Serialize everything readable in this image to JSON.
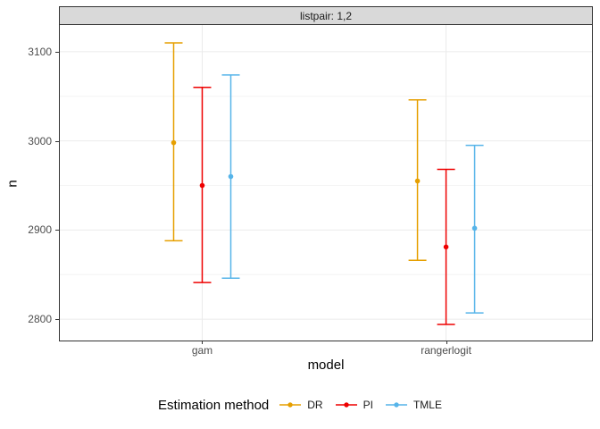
{
  "facet": {
    "label": "listpair: 1,2"
  },
  "axes": {
    "y": {
      "title": "n",
      "ticks": [
        3100,
        3000,
        2900,
        2800
      ],
      "minor_ticks": [
        3050,
        2950,
        2850
      ]
    },
    "x": {
      "title": "model",
      "categories": [
        "gam",
        "rangerlogit"
      ]
    }
  },
  "legend": {
    "title": "Estimation method",
    "items": [
      {
        "label": "DR",
        "color": "#E69F00"
      },
      {
        "label": "PI",
        "color": "#EE0000"
      },
      {
        "label": "TMLE",
        "color": "#56B4E9"
      }
    ]
  },
  "chart_data": {
    "type": "scatter",
    "subtype": "pointrange-errorbar",
    "title": "listpair: 1,2",
    "xlabel": "model",
    "ylabel": "n",
    "categories": [
      "gam",
      "rangerlogit"
    ],
    "ylim": [
      2776,
      3130
    ],
    "grid": "on",
    "legend_position": "bottom",
    "series": [
      {
        "name": "DR",
        "color": "#E69F00",
        "points": [
          {
            "category": "gam",
            "mid": 2998,
            "lower": 2888,
            "upper": 3110
          },
          {
            "category": "rangerlogit",
            "mid": 2955,
            "lower": 2866,
            "upper": 3046
          }
        ]
      },
      {
        "name": "PI",
        "color": "#EE0000",
        "points": [
          {
            "category": "gam",
            "mid": 2950,
            "lower": 2841,
            "upper": 3060
          },
          {
            "category": "rangerlogit",
            "mid": 2881,
            "lower": 2794,
            "upper": 2968
          }
        ]
      },
      {
        "name": "TMLE",
        "color": "#56B4E9",
        "points": [
          {
            "category": "gam",
            "mid": 2960,
            "lower": 2846,
            "upper": 3074
          },
          {
            "category": "rangerlogit",
            "mid": 2902,
            "lower": 2807,
            "upper": 2995
          }
        ]
      }
    ]
  }
}
